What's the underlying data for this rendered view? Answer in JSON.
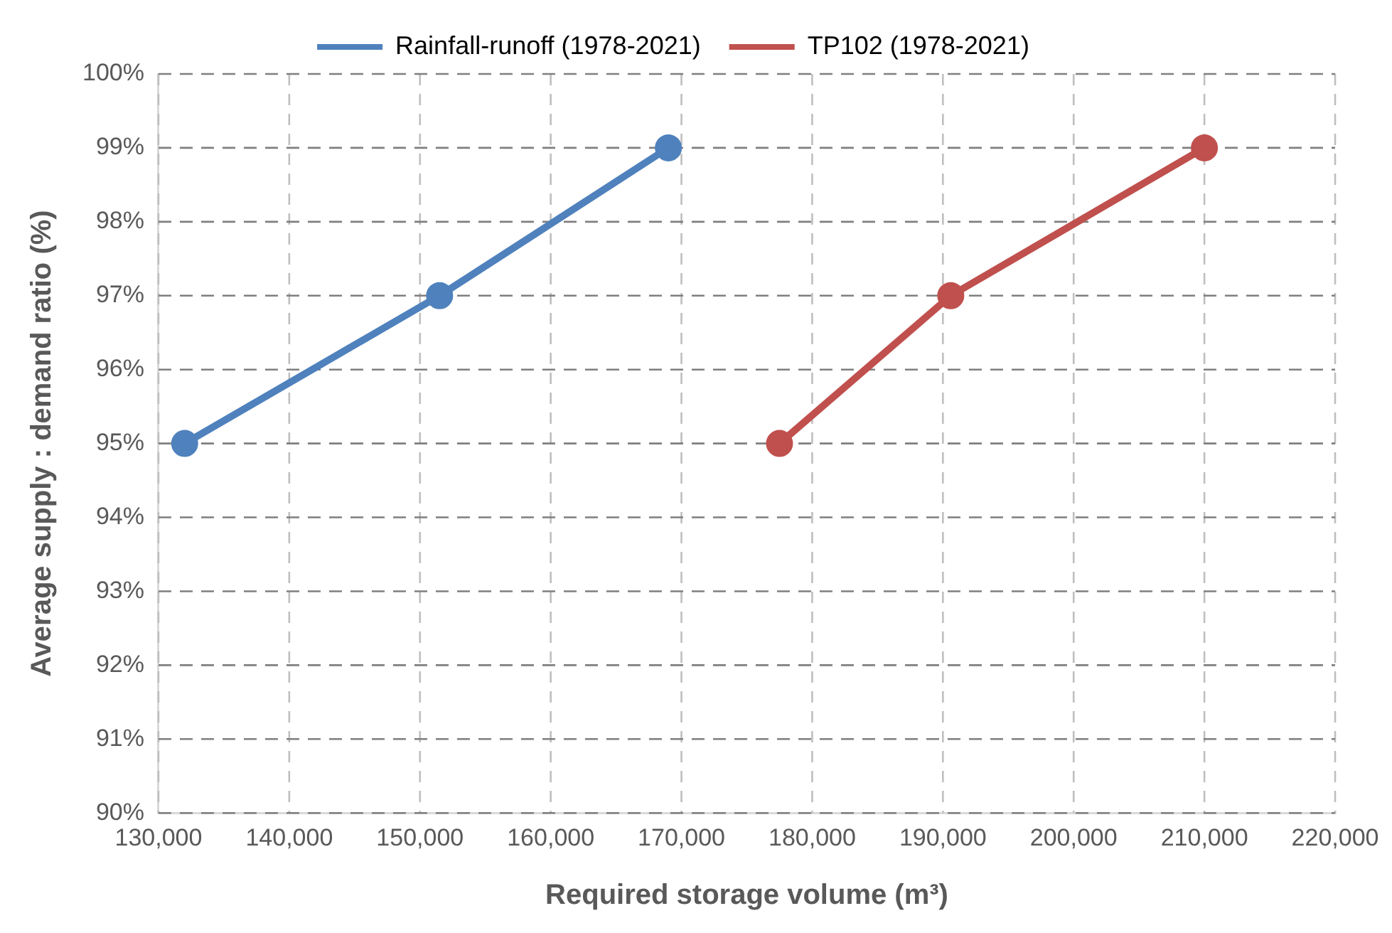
{
  "chart_data": {
    "type": "line",
    "xlabel": "Required storage volume (m³)",
    "ylabel": "Average supply : demand ratio (%)",
    "series": [
      {
        "name": "Rainfall-runoff (1978-2021)",
        "color": "#4f81bd",
        "x": [
          132000,
          151500,
          169000
        ],
        "values": [
          95,
          97,
          99
        ]
      },
      {
        "name": "TP102 (1978-2021)",
        "color": "#c0504d",
        "x": [
          177500,
          190600,
          210000
        ],
        "values": [
          95,
          97,
          99
        ]
      }
    ],
    "xlim": [
      130000,
      220000
    ],
    "xticks": [
      {
        "value": 130000,
        "label": "130,000"
      },
      {
        "value": 140000,
        "label": "140,000"
      },
      {
        "value": 150000,
        "label": "150,000"
      },
      {
        "value": 160000,
        "label": "160,000"
      },
      {
        "value": 170000,
        "label": "170,000"
      },
      {
        "value": 180000,
        "label": "180,000"
      },
      {
        "value": 190000,
        "label": "190,000"
      },
      {
        "value": 200000,
        "label": "200,000"
      },
      {
        "value": 210000,
        "label": "210,000"
      },
      {
        "value": 220000,
        "label": "220,000"
      }
    ],
    "ylim": [
      90,
      100
    ],
    "yticks": [
      {
        "value": 90,
        "label": "90%"
      },
      {
        "value": 91,
        "label": "91%"
      },
      {
        "value": 92,
        "label": "92%"
      },
      {
        "value": 93,
        "label": "93%"
      },
      {
        "value": 94,
        "label": "94%"
      },
      {
        "value": 95,
        "label": "95%"
      },
      {
        "value": 96,
        "label": "96%"
      },
      {
        "value": 97,
        "label": "97%"
      },
      {
        "value": 98,
        "label": "98%"
      },
      {
        "value": 99,
        "label": "99%"
      },
      {
        "value": 100,
        "label": "100%"
      }
    ],
    "grid": true,
    "legend": "top",
    "marker": "circle",
    "line_style": "solid"
  }
}
